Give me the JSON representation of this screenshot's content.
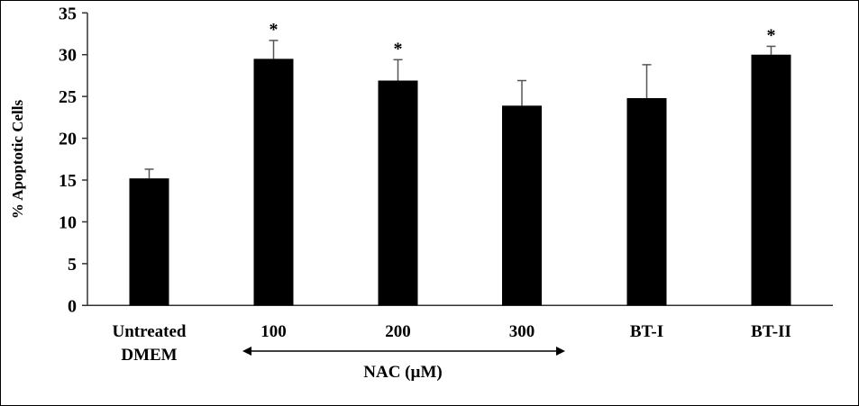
{
  "chart_data": {
    "type": "bar",
    "title": "",
    "ylabel": "% Apoptotic  Cells",
    "xlabel": "",
    "ylim": [
      0,
      35
    ],
    "yticks": [
      0,
      5,
      10,
      15,
      20,
      25,
      30,
      35
    ],
    "grid": false,
    "categories": [
      {
        "lines": [
          "Untreated",
          "DMEM"
        ]
      },
      {
        "lines": [
          "100"
        ]
      },
      {
        "lines": [
          "200"
        ]
      },
      {
        "lines": [
          "300"
        ]
      },
      {
        "lines": [
          "BT-I"
        ]
      },
      {
        "lines": [
          "BT-II"
        ]
      }
    ],
    "values": [
      15.2,
      29.5,
      26.9,
      23.9,
      24.8,
      30.0
    ],
    "error_upper": [
      1.1,
      2.2,
      2.5,
      3.0,
      4.0,
      1.0
    ],
    "significance": [
      "",
      "*",
      "*",
      "",
      "",
      "*"
    ],
    "group_bracket": {
      "label": "NAC (µM)",
      "spans": [
        "100",
        "300"
      ]
    },
    "bar_color": "#000000"
  }
}
